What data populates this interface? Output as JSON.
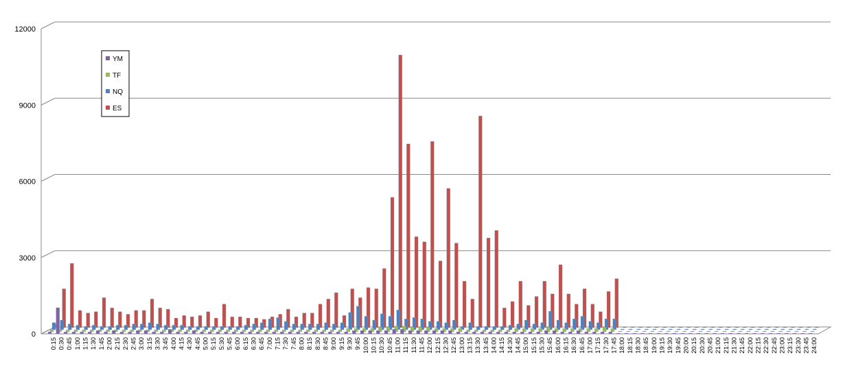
{
  "chart_data": {
    "type": "bar",
    "categories": [
      "0:15",
      "0:30",
      "0:45",
      "1:00",
      "1:15",
      "1:30",
      "1:45",
      "2:00",
      "2:15",
      "2:30",
      "2:45",
      "3:00",
      "3:15",
      "3:30",
      "3:45",
      "4:00",
      "4:15",
      "4:30",
      "4:45",
      "5:00",
      "5:15",
      "5:30",
      "5:45",
      "6:00",
      "6:15",
      "6:30",
      "6:45",
      "7:00",
      "7:15",
      "7:30",
      "7:45",
      "8:00",
      "8:15",
      "8:30",
      "8:45",
      "9:00",
      "9:15",
      "9:30",
      "9:45",
      "10:00",
      "10:15",
      "10:30",
      "10:45",
      "11:00",
      "11:15",
      "11:30",
      "11:45",
      "12:00",
      "12:15",
      "12:30",
      "12:45",
      "13:00",
      "13:15",
      "13:30",
      "13:45",
      "14:00",
      "14:15",
      "14:30",
      "14:45",
      "15:00",
      "15:15",
      "15:30",
      "15:45",
      "16:00",
      "16:15",
      "16:30",
      "16:45",
      "17:00",
      "17:15",
      "17:30",
      "17:45",
      "18:00",
      "18:15",
      "18:30",
      "18:45",
      "19:00",
      "19:15",
      "19:30",
      "19:45",
      "20:00",
      "20:15",
      "20:30",
      "20:45",
      "21:00",
      "21:15",
      "21:30",
      "21:45",
      "22:00",
      "22:15",
      "22:30",
      "22:45",
      "23:00",
      "23:15",
      "23:30",
      "23:45",
      "24:00"
    ],
    "series": [
      {
        "name": "YM",
        "color": "#8064A2",
        "values": [
          50,
          1000,
          50,
          50,
          50,
          50,
          100,
          50,
          100,
          50,
          50,
          100,
          100,
          50,
          50,
          150,
          50,
          50,
          100,
          50,
          50,
          50,
          50,
          50,
          50,
          50,
          50,
          50,
          50,
          50,
          50,
          50,
          50,
          50,
          50,
          50,
          50,
          50,
          100,
          100,
          100,
          100,
          100,
          150,
          150,
          100,
          100,
          100,
          100,
          100,
          100,
          50,
          50,
          50,
          50,
          50,
          50,
          50,
          50,
          50,
          50,
          50,
          100,
          100,
          50,
          50,
          100,
          50,
          50,
          50,
          50,
          0,
          0,
          0,
          0,
          0,
          0,
          0,
          0,
          0,
          0,
          0,
          0,
          0,
          0,
          0,
          0,
          0,
          0,
          0,
          0,
          0,
          0,
          0,
          0,
          0
        ]
      },
      {
        "name": "TF",
        "color": "#9BBB59",
        "values": [
          50,
          50,
          50,
          50,
          50,
          50,
          50,
          50,
          50,
          50,
          50,
          50,
          50,
          50,
          50,
          50,
          50,
          50,
          50,
          50,
          50,
          50,
          50,
          50,
          50,
          50,
          50,
          50,
          50,
          50,
          50,
          50,
          50,
          50,
          50,
          50,
          50,
          100,
          100,
          100,
          100,
          150,
          150,
          200,
          200,
          150,
          150,
          150,
          100,
          100,
          100,
          100,
          50,
          50,
          50,
          50,
          50,
          50,
          100,
          100,
          100,
          100,
          150,
          100,
          100,
          100,
          100,
          100,
          100,
          150,
          100,
          0,
          0,
          0,
          0,
          0,
          0,
          0,
          0,
          0,
          0,
          0,
          0,
          0,
          0,
          0,
          0,
          0,
          0,
          0,
          0,
          0,
          0,
          0,
          0,
          0
        ]
      },
      {
        "name": "NQ",
        "color": "#4F81BD",
        "values": [
          250,
          350,
          200,
          150,
          100,
          150,
          100,
          100,
          150,
          150,
          200,
          200,
          250,
          200,
          150,
          150,
          150,
          100,
          100,
          100,
          100,
          100,
          100,
          100,
          150,
          200,
          250,
          400,
          450,
          300,
          200,
          200,
          200,
          200,
          250,
          200,
          250,
          650,
          900,
          500,
          350,
          600,
          500,
          750,
          400,
          450,
          400,
          300,
          300,
          250,
          350,
          100,
          250,
          100,
          100,
          100,
          100,
          150,
          200,
          350,
          200,
          250,
          700,
          350,
          250,
          400,
          500,
          300,
          250,
          400,
          400,
          0,
          0,
          0,
          0,
          0,
          0,
          0,
          0,
          0,
          0,
          0,
          0,
          0,
          0,
          0,
          0,
          0,
          0,
          0,
          0,
          0,
          0,
          0,
          0,
          0
        ]
      },
      {
        "name": "ES",
        "color": "#C0504D",
        "values": [
          100,
          1500,
          2500,
          650,
          550,
          600,
          1150,
          750,
          600,
          500,
          650,
          650,
          1100,
          750,
          700,
          350,
          450,
          400,
          450,
          600,
          350,
          900,
          400,
          400,
          350,
          350,
          300,
          400,
          500,
          700,
          400,
          550,
          550,
          900,
          1100,
          1350,
          450,
          1500,
          1150,
          1550,
          1500,
          2300,
          5100,
          10700,
          7200,
          3550,
          3350,
          7300,
          2600,
          5450,
          3300,
          1800,
          1100,
          8300,
          3500,
          3800,
          750,
          1000,
          1800,
          850,
          1200,
          1800,
          1300,
          2450,
          1300,
          900,
          1500,
          900,
          600,
          1400,
          1900,
          0,
          0,
          0,
          0,
          0,
          0,
          0,
          0,
          0,
          0,
          0,
          0,
          0,
          0,
          0,
          0,
          0,
          0,
          0,
          0,
          0,
          0,
          0,
          0,
          0
        ]
      }
    ],
    "ylim": [
      0,
      12000
    ],
    "yticks": [
      0,
      3000,
      6000,
      9000,
      12000
    ],
    "grid": true
  }
}
